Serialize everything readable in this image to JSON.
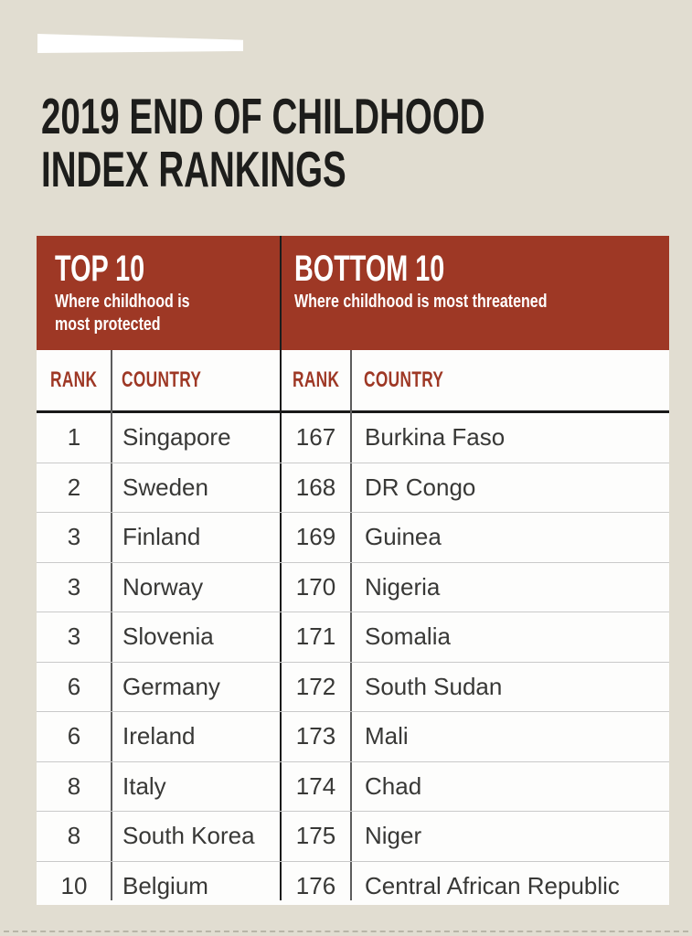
{
  "page_title": {
    "line1": "2019 END OF CHILDHOOD",
    "line2": "INDEX RANKINGS"
  },
  "banner": {
    "top": {
      "heading": "TOP 10",
      "subtitle": "Where childhood is most protected"
    },
    "bottom": {
      "heading": "BOTTOM 10",
      "subtitle": "Where childhood is most threatened"
    }
  },
  "table": {
    "col_headers": {
      "rank": "RANK",
      "country": "COUNTRY"
    },
    "rows": [
      {
        "top_rank": "1",
        "top_country": "Singapore",
        "bottom_rank": "167",
        "bottom_country": "Burkina Faso"
      },
      {
        "top_rank": "2",
        "top_country": "Sweden",
        "bottom_rank": "168",
        "bottom_country": "DR Congo"
      },
      {
        "top_rank": "3",
        "top_country": "Finland",
        "bottom_rank": "169",
        "bottom_country": "Guinea"
      },
      {
        "top_rank": "3",
        "top_country": "Norway",
        "bottom_rank": "170",
        "bottom_country": "Nigeria"
      },
      {
        "top_rank": "3",
        "top_country": "Slovenia",
        "bottom_rank": "171",
        "bottom_country": "Somalia"
      },
      {
        "top_rank": "6",
        "top_country": "Germany",
        "bottom_rank": "172",
        "bottom_country": "South Sudan"
      },
      {
        "top_rank": "6",
        "top_country": "Ireland",
        "bottom_rank": "173",
        "bottom_country": "Mali"
      },
      {
        "top_rank": "8",
        "top_country": "Italy",
        "bottom_rank": "174",
        "bottom_country": "Chad"
      },
      {
        "top_rank": "8",
        "top_country": "South Korea",
        "bottom_rank": "175",
        "bottom_country": "Niger"
      },
      {
        "top_rank": "10",
        "top_country": "Belgium",
        "bottom_rank": "176",
        "bottom_country": "Central African Republic"
      }
    ]
  },
  "colors": {
    "background": "#e1ddd1",
    "accent_red": "#9e3825",
    "title_ink": "#1d1d1b",
    "body_text": "#383836",
    "row_rule": "#c9c9c9"
  }
}
